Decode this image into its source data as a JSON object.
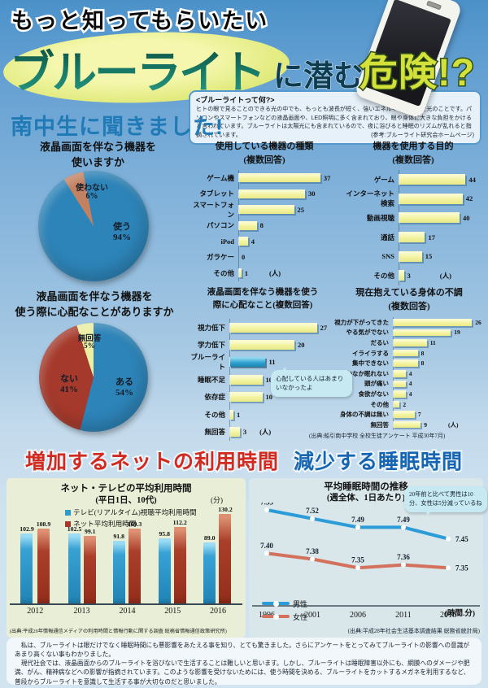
{
  "header": {
    "tagline": "もっと知ってもらいたい",
    "title_blue_light": "ブルーライト",
    "title_mid": "に潜む",
    "title_danger": "危険!?"
  },
  "info_box": {
    "title": "<ブルーライトって何?>",
    "body": "ヒトの眼で見ることのできる光の中でも、もっとも波長が短く、強いエネルギーを持った光のことです。パソコンやスマートフォンなどの液晶画面や、LED照明に多く含まれており、眼や身体に大きな負担をかけると言われています。ブルーライトは太陽光にも含まれているので、夜に浴びると睡眠のリズムが乱れると指摘されています。",
    "ref": "(参考:ブルーライト研究会ホームページ)"
  },
  "section_heading": "南中生に聞きました!",
  "headline": {
    "red": "増加するネットの利用時間",
    "blue": "減少する睡眠時間"
  },
  "survey_source": "(出典:船引南中学校 全校生徒アンケート 平成30年7月)",
  "chart_data": [
    {
      "type": "pie",
      "title": "液晶画面を伴なう機器を使いますか",
      "title_lines": [
        "液晶画面を伴なう機器を",
        "使いますか"
      ],
      "slices": [
        {
          "label": "使わない",
          "pct": "6%",
          "value": 6,
          "color": "#c28160"
        },
        {
          "label": "使う",
          "pct": "94%",
          "value": 94,
          "color": "#2d84b8"
        }
      ]
    },
    {
      "type": "bar",
      "title": "使用している機器の種類",
      "subtitle": "(複数回答)",
      "unit": "(人)",
      "categories": [
        "ゲーム機",
        "タブレット",
        "スマートフォン",
        "パソコン",
        "iPod",
        "ガラケー",
        "その他"
      ],
      "values": [
        37,
        30,
        25,
        8,
        4,
        0,
        1
      ]
    },
    {
      "type": "bar",
      "title": "機器を使用する目的",
      "subtitle": "(複数回答)",
      "unit": "(人)",
      "categories": [
        "ゲーム",
        "インターネット検索",
        "動画視聴",
        "通話",
        "SNS",
        "その他"
      ],
      "values": [
        44,
        42,
        40,
        17,
        15,
        3
      ]
    },
    {
      "type": "pie",
      "title": "液晶画面を伴なう機器を使う際に心配なことがありますか",
      "title_lines": [
        "液晶画面を伴なう機器を",
        "使う際に心配なことがありますか"
      ],
      "slices": [
        {
          "label": "ある",
          "pct": "54%",
          "value": 54,
          "color": "#2d84b8"
        },
        {
          "label": "ない",
          "pct": "41%",
          "value": 41,
          "color": "#a53a2c"
        },
        {
          "label": "無回答",
          "pct": "5%",
          "value": 5,
          "color": "#ecefa2"
        }
      ]
    },
    {
      "type": "bar",
      "title": "液晶画面を伴なう機器を使う際に心配なこと",
      "title_lines": [
        "液晶画面を伴なう機器を使う",
        "際に心配なこと(複数回答)"
      ],
      "unit": "(人)",
      "categories": [
        "視力低下",
        "学力低下",
        "ブルーライト",
        "睡眠不足",
        "依存症",
        "その他",
        "無回答"
      ],
      "values": [
        27,
        20,
        11,
        10,
        10,
        1,
        3
      ],
      "highlight_index": 2,
      "annotation": "心配している人はあまりいなかったよ"
    },
    {
      "type": "bar",
      "title": "現在抱えている身体の不調",
      "subtitle": "(複数回答)",
      "unit": "(人)",
      "categories": [
        "視力が下がってきた",
        "やる気がでない",
        "だるい",
        "イライラする",
        "集中できない",
        "なかなか眠れない",
        "頭が痛い",
        "食欲がない",
        "その他",
        "身体の不調は無い",
        "無回答"
      ],
      "values": [
        26,
        19,
        11,
        8,
        8,
        4,
        4,
        4,
        2,
        7,
        9
      ],
      "source": "(出典:船引南中学校 全校生徒アンケート 平成30年7月)"
    },
    {
      "type": "bar",
      "title": "ネット・テレビの平均利用時間",
      "subtitle": "(平日1日、10代)",
      "unit": "(分)",
      "categories": [
        "2012",
        "2013",
        "2014",
        "2015",
        "2016"
      ],
      "series": [
        {
          "name": "テレビ(リアルタイム)視聴平均利用時間",
          "color": "#2f9bcc",
          "values": [
            102.9,
            102.5,
            91.8,
            95.8,
            89.0
          ]
        },
        {
          "name": "ネット平均利用時間",
          "color": "#a63a28",
          "values": [
            108.9,
            99.1,
            109.3,
            112.2,
            130.2
          ]
        }
      ],
      "source": "(出典:平成29年情報通信メディアの利用時間と情報行動に関する調査 総務省情報通信政策研究所)"
    },
    {
      "type": "line",
      "title": "平均睡眠時間の推移",
      "subtitle": "(週全体、1日あたり)",
      "unit": "(時間.分)",
      "x": [
        "1996",
        "2001",
        "2006",
        "2011",
        "2016"
      ],
      "ylim": [
        7.3,
        7.6
      ],
      "series": [
        {
          "name": "男性",
          "color": "#2b9cd8",
          "values": [
            7.55,
            7.52,
            7.49,
            7.49,
            7.45
          ]
        },
        {
          "name": "女性",
          "color": "#d4715c",
          "values": [
            7.4,
            7.38,
            7.35,
            7.36,
            7.35
          ]
        }
      ],
      "annotation": "20年前と比べて男性は10分、女性は5分減っているね",
      "source": "(出典:平成28年社会生活基本調査結果 総務省統計局)"
    }
  ],
  "footer": {
    "p1": "私は、ブルーライトは眼だけでなく睡眠時間にも悪影響をあたえる事を知り、とても驚きました。さらにアンケートをとってみてブルーライトの影響への意識があまり高くない事もわかりました。",
    "p2": "現代社会では、液晶画面からのブルーライトを浴びないで生活することは難しいと思います。しかし、ブルーライトは睡眠障害以外にも、網膜へのダメージや肥満、がん、精神病などへの影響が指摘されています。このような影響を受けないためには、使う時間を決める、ブルーライトをカットするメガネを利用するなど、普段からブルーライトを意識して生活する事が大切なのだと思いました。"
  }
}
